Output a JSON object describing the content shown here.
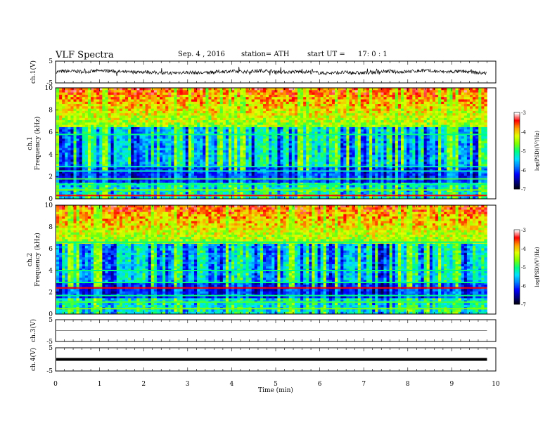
{
  "header": {
    "title": "VLF  Spectra",
    "date": "Sep. 4   , 2016",
    "station": "station= ATH",
    "start_label": "start  UT  =",
    "start_value": "17: 0   : 1"
  },
  "chart_data": {
    "type": "heatmap",
    "title": "VLF  Spectra",
    "x": {
      "label": "Time  (min)",
      "range": [
        0,
        10
      ],
      "ticks": [
        "0",
        "1",
        "2",
        "3",
        "4",
        "5",
        "6",
        "7",
        "8",
        "9",
        "10"
      ],
      "data_end": 9.8
    },
    "panels": [
      {
        "id": "ch1-waveform",
        "type": "line",
        "ylabel": "ch.1(V)",
        "yrange": [
          -5,
          5
        ],
        "yticks": [
          "5",
          "-5"
        ]
      },
      {
        "id": "ch1-spectrogram",
        "type": "heatmap",
        "ylabel": "ch.1\nFrequency  (kHz)",
        "ylabel_lines": [
          "ch.1",
          "Frequency  (kHz)"
        ],
        "yrange": [
          0,
          10
        ],
        "yticks": [
          "0",
          "2",
          "4",
          "6",
          "8",
          "10"
        ],
        "colorbar": {
          "label": "log(PSD)(V²/Hz)",
          "range": [
            -7,
            -3
          ],
          "ticks": [
            "-3",
            "-4",
            "-5",
            "-6",
            "-7"
          ]
        }
      },
      {
        "id": "ch2-spectrogram",
        "type": "heatmap",
        "ylabel": "ch.2\nFrequency  (kHz)",
        "ylabel_lines": [
          "ch.2",
          "Frequency  (kHz)"
        ],
        "yrange": [
          0,
          10
        ],
        "yticks": [
          "0",
          "2",
          "4",
          "6",
          "8",
          "10"
        ],
        "colorbar": {
          "label": "log(PSD)(V²/Hz)",
          "range": [
            -7,
            -3
          ],
          "ticks": [
            "-3",
            "-4",
            "-5",
            "-6",
            "-7"
          ]
        }
      },
      {
        "id": "ch3-waveform",
        "type": "line",
        "ylabel": "ch.3(V)",
        "yrange": [
          -5,
          5
        ],
        "yticks": [
          "5",
          "-5"
        ]
      },
      {
        "id": "ch4-waveform",
        "type": "line",
        "ylabel": "ch.4(V)",
        "yrange": [
          -5,
          5
        ],
        "yticks": [
          "5",
          "-5"
        ]
      }
    ]
  },
  "colors": {
    "colormap": [
      "#000000",
      "#000080",
      "#0000ff",
      "#0080ff",
      "#00e0ff",
      "#00ff80",
      "#80ff00",
      "#e0ff00",
      "#ffa000",
      "#ff0000",
      "#ffffff"
    ],
    "line": "#000000"
  }
}
